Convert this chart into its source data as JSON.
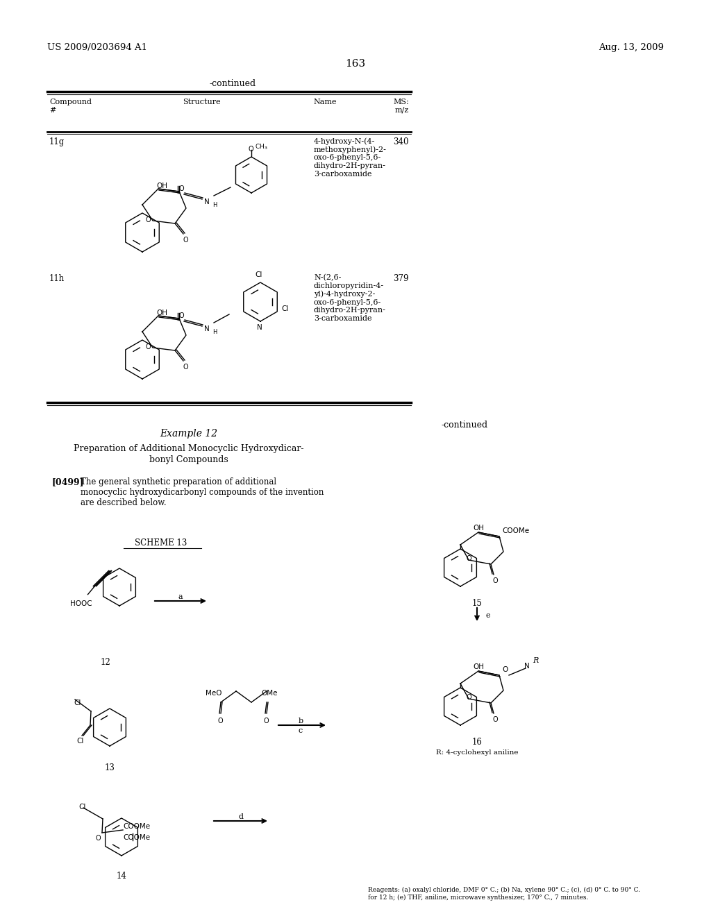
{
  "page_number": "163",
  "patent_left": "US 2009/0203694 A1",
  "patent_right": "Aug. 13, 2009",
  "continued_top": "-continued",
  "compound_11g": "11g",
  "compound_11g_name": "4-hydroxy-N-(4-\nmethoxyphenyl)-2-\noxo-6-phenyl-5,6-\ndihydro-2H-pyran-\n3-carboxamide",
  "compound_11g_ms": "340",
  "compound_11h": "11h",
  "compound_11h_name": "N-(2,6-\ndichloropyridin-4-\nyl)-4-hydroxy-2-\noxo-6-phenyl-5,6-\ndihydro-2H-pyran-\n3-carboxamide",
  "compound_11h_ms": "379",
  "example12_title": "Example 12",
  "example12_subtitle1": "Preparation of Additional Monocyclic Hydroxydicar-",
  "example12_subtitle2": "bonyl Compounds",
  "paragraph_ref": "[0499]",
  "paragraph_text": "The general synthetic preparation of additional\nmonocyclic hydroxydicarbonyl compounds of the invention\nare described below.",
  "scheme_label": "SCHEME 13",
  "compound12_label": "12",
  "compound13_label": "13",
  "compound14_label": "14",
  "compound15_label": "15",
  "compound16_label": "16",
  "continued_right": "-continued",
  "arrow_a": "a",
  "arrow_b": "b",
  "arrow_c": "c",
  "arrow_d": "d",
  "arrow_e": "e",
  "r_label": "R: 4-cyclohexyl aniline",
  "reagents": "Reagents: (a) oxalyl chloride, DMF 0° C.; (b) Na, xylene 90° C.; (c), (d) 0° C. to 90° C.\nfor 12 h; (e) THF, aniline, microwave synthesizer, 170° C., 7 minutes.",
  "bg_color": "#ffffff",
  "text_color": "#000000"
}
